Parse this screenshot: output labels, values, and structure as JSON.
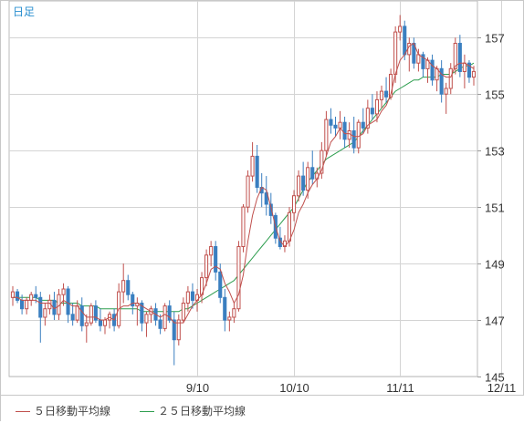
{
  "period_label": "日足",
  "legend": [
    {
      "label": "５日移動平均線",
      "color": "#c0504d"
    },
    {
      "label": "２５日移動平均線",
      "color": "#2e9e4f"
    }
  ],
  "colors": {
    "up": "#c0504d",
    "down": "#3a7fc0",
    "ma5": "#c0504d",
    "ma25": "#2e9e4f",
    "grid": "#d4d4d4"
  },
  "chart_data": {
    "type": "candlestick",
    "title": "",
    "xlabel": "",
    "ylabel": "",
    "ylim": [
      145,
      158.3
    ],
    "y_ticks": [
      145,
      147,
      149,
      151,
      153,
      155,
      157
    ],
    "x_ticks": [
      {
        "label": "9/10",
        "index": 40
      },
      {
        "label": "10/10",
        "index": 61
      },
      {
        "label": "11/11",
        "index": 84
      },
      {
        "label": "12/11",
        "index": 106
      }
    ],
    "grid": true,
    "legend_position": "bottom",
    "ohlc": [
      [
        147.8,
        148.2,
        147.5,
        148.0
      ],
      [
        148.0,
        148.1,
        147.6,
        147.7
      ],
      [
        147.7,
        147.9,
        147.2,
        147.4
      ],
      [
        147.4,
        147.8,
        147.2,
        147.7
      ],
      [
        147.7,
        148.0,
        147.5,
        147.9
      ],
      [
        147.9,
        148.2,
        147.6,
        147.8
      ],
      [
        147.8,
        148.0,
        146.2,
        147.1
      ],
      [
        147.1,
        147.6,
        146.8,
        147.4
      ],
      [
        147.4,
        147.9,
        147.2,
        147.7
      ],
      [
        147.7,
        148.0,
        147.0,
        147.2
      ],
      [
        147.2,
        148.1,
        147.0,
        147.9
      ],
      [
        147.9,
        148.3,
        147.5,
        148.1
      ],
      [
        148.1,
        148.2,
        146.9,
        147.2
      ],
      [
        147.2,
        147.6,
        146.8,
        147.0
      ],
      [
        147.0,
        147.7,
        146.9,
        147.5
      ],
      [
        147.5,
        147.8,
        146.6,
        146.8
      ],
      [
        146.8,
        147.2,
        146.2,
        146.9
      ],
      [
        146.9,
        147.6,
        146.8,
        147.5
      ],
      [
        147.5,
        147.7,
        146.9,
        147.0
      ],
      [
        147.0,
        147.4,
        146.6,
        146.8
      ],
      [
        146.8,
        147.1,
        146.5,
        147.0
      ],
      [
        147.0,
        147.3,
        146.7,
        147.2
      ],
      [
        147.2,
        147.4,
        146.6,
        146.8
      ],
      [
        146.8,
        148.3,
        146.7,
        148.0
      ],
      [
        148.0,
        149.0,
        147.6,
        148.4
      ],
      [
        148.4,
        148.6,
        147.7,
        147.9
      ],
      [
        147.9,
        148.0,
        147.2,
        147.5
      ],
      [
        147.5,
        147.8,
        146.8,
        147.6
      ],
      [
        147.6,
        147.7,
        146.6,
        146.9
      ],
      [
        146.9,
        147.3,
        146.4,
        147.2
      ],
      [
        147.2,
        147.5,
        146.9,
        147.4
      ],
      [
        147.4,
        147.6,
        146.8,
        147.0
      ],
      [
        147.0,
        147.2,
        146.5,
        146.7
      ],
      [
        146.7,
        147.6,
        146.6,
        147.5
      ],
      [
        147.5,
        147.7,
        146.9,
        147.0
      ],
      [
        147.0,
        147.3,
        145.4,
        146.3
      ],
      [
        146.3,
        147.2,
        146.1,
        147.0
      ],
      [
        147.0,
        147.8,
        146.9,
        147.6
      ],
      [
        147.6,
        148.2,
        147.3,
        148.0
      ],
      [
        148.0,
        148.3,
        147.4,
        147.7
      ],
      [
        147.7,
        148.1,
        147.3,
        147.9
      ],
      [
        147.9,
        148.7,
        147.6,
        148.5
      ],
      [
        148.5,
        149.5,
        148.2,
        149.3
      ],
      [
        149.3,
        149.8,
        148.9,
        149.6
      ],
      [
        149.6,
        149.8,
        148.4,
        148.7
      ],
      [
        148.7,
        149.0,
        147.6,
        147.8
      ],
      [
        147.8,
        148.1,
        146.6,
        147.0
      ],
      [
        147.0,
        147.3,
        146.6,
        147.1
      ],
      [
        147.1,
        147.6,
        146.9,
        147.4
      ],
      [
        147.4,
        149.8,
        147.3,
        149.6
      ],
      [
        149.6,
        151.1,
        149.4,
        151.0
      ],
      [
        151.0,
        152.3,
        150.8,
        152.1
      ],
      [
        152.1,
        153.3,
        151.9,
        152.8
      ],
      [
        152.8,
        153.2,
        151.5,
        151.7
      ],
      [
        151.7,
        152.2,
        151.0,
        151.5
      ],
      [
        151.5,
        152.1,
        150.7,
        151.1
      ],
      [
        151.1,
        151.5,
        150.4,
        150.7
      ],
      [
        150.7,
        150.8,
        149.7,
        149.9
      ],
      [
        149.9,
        150.3,
        149.5,
        149.6
      ],
      [
        149.6,
        150.0,
        149.4,
        149.8
      ],
      [
        149.8,
        151.0,
        149.6,
        150.8
      ],
      [
        150.8,
        151.6,
        150.5,
        151.4
      ],
      [
        151.4,
        152.3,
        151.2,
        152.1
      ],
      [
        152.1,
        152.6,
        151.4,
        151.6
      ],
      [
        151.6,
        152.6,
        151.3,
        152.4
      ],
      [
        152.4,
        153.0,
        151.8,
        152.0
      ],
      [
        152.0,
        152.4,
        151.7,
        152.2
      ],
      [
        152.2,
        153.3,
        152.0,
        153.0
      ],
      [
        153.0,
        154.4,
        152.8,
        154.1
      ],
      [
        154.1,
        154.5,
        153.6,
        153.9
      ],
      [
        153.9,
        154.2,
        153.5,
        153.8
      ],
      [
        153.8,
        154.4,
        153.4,
        154.0
      ],
      [
        154.0,
        154.2,
        153.1,
        153.4
      ],
      [
        153.4,
        154.0,
        153.1,
        153.7
      ],
      [
        153.7,
        154.2,
        152.9,
        153.1
      ],
      [
        153.1,
        154.1,
        152.9,
        154.0
      ],
      [
        154.0,
        154.5,
        153.6,
        153.8
      ],
      [
        153.8,
        154.8,
        153.6,
        154.5
      ],
      [
        154.5,
        155.0,
        154.1,
        154.3
      ],
      [
        154.3,
        155.1,
        154.0,
        154.8
      ],
      [
        154.8,
        155.3,
        154.5,
        155.1
      ],
      [
        155.1,
        155.6,
        154.7,
        154.9
      ],
      [
        154.9,
        155.9,
        154.8,
        155.7
      ],
      [
        155.7,
        157.4,
        155.4,
        157.2
      ],
      [
        157.2,
        157.8,
        156.9,
        157.4
      ],
      [
        157.4,
        157.6,
        156.2,
        156.4
      ],
      [
        156.4,
        157.0,
        155.8,
        156.8
      ],
      [
        156.8,
        157.0,
        155.9,
        156.1
      ],
      [
        156.1,
        156.6,
        155.8,
        156.4
      ],
      [
        156.4,
        156.5,
        155.6,
        155.9
      ],
      [
        155.9,
        156.3,
        155.4,
        156.2
      ],
      [
        156.2,
        156.4,
        155.3,
        155.5
      ],
      [
        155.5,
        156.0,
        155.1,
        155.9
      ],
      [
        155.9,
        156.2,
        154.7,
        155.0
      ],
      [
        155.0,
        155.4,
        154.3,
        155.2
      ],
      [
        155.2,
        156.1,
        155.0,
        155.9
      ],
      [
        155.9,
        157.0,
        155.7,
        156.8
      ],
      [
        156.8,
        157.1,
        155.6,
        155.8
      ],
      [
        155.8,
        156.4,
        155.2,
        156.1
      ],
      [
        156.1,
        156.2,
        155.4,
        155.6
      ],
      [
        155.6,
        156.0,
        155.3,
        155.8
      ]
    ],
    "ma5": [
      147.8,
      147.8,
      147.7,
      147.7,
      147.7,
      147.7,
      147.6,
      147.6,
      147.6,
      147.4,
      147.5,
      147.7,
      147.6,
      147.5,
      147.5,
      147.3,
      147.1,
      147.1,
      147.1,
      147.0,
      147.0,
      147.1,
      147.0,
      147.4,
      147.5,
      147.5,
      147.6,
      147.6,
      147.5,
      147.4,
      147.3,
      147.2,
      147.1,
      147.2,
      147.1,
      146.9,
      146.9,
      146.9,
      147.2,
      147.5,
      147.7,
      147.9,
      148.3,
      148.8,
      148.9,
      148.8,
      148.3,
      148.0,
      147.6,
      147.9,
      148.6,
      149.8,
      150.7,
      151.3,
      151.7,
      151.6,
      151.0,
      150.3,
      149.8,
      149.6,
      149.8,
      150.2,
      150.8,
      151.1,
      151.5,
      151.8,
      152.0,
      152.3,
      152.8,
      153.3,
      153.5,
      153.8,
      153.6,
      153.6,
      153.5,
      153.5,
      153.6,
      153.9,
      154.0,
      154.1,
      154.4,
      154.6,
      155.0,
      155.7,
      156.2,
      156.4,
      156.7,
      156.8,
      156.4,
      156.3,
      156.2,
      156.0,
      155.9,
      155.7,
      155.6,
      155.6,
      156.0,
      156.1,
      156.1,
      156.0,
      155.9
    ],
    "ma25": [
      147.8,
      147.8,
      147.8,
      147.8,
      147.8,
      147.8,
      147.7,
      147.7,
      147.7,
      147.7,
      147.6,
      147.6,
      147.6,
      147.6,
      147.6,
      147.5,
      147.5,
      147.5,
      147.5,
      147.4,
      147.4,
      147.4,
      147.4,
      147.4,
      147.4,
      147.4,
      147.4,
      147.4,
      147.3,
      147.3,
      147.3,
      147.3,
      147.3,
      147.3,
      147.3,
      147.3,
      147.3,
      147.4,
      147.4,
      147.5,
      147.6,
      147.7,
      147.8,
      147.9,
      148.0,
      148.1,
      148.2,
      148.3,
      148.4,
      148.6,
      148.8,
      149.0,
      149.2,
      149.4,
      149.6,
      149.8,
      150.0,
      150.2,
      150.4,
      150.6,
      150.8,
      151.0,
      151.3,
      151.6,
      151.9,
      152.1,
      152.3,
      152.5,
      152.7,
      152.8,
      152.9,
      153.0,
      153.1,
      153.2,
      153.3,
      153.5,
      153.7,
      153.9,
      154.1,
      154.3,
      154.5,
      154.7,
      154.9,
      155.1,
      155.2,
      155.3,
      155.4,
      155.5,
      155.5,
      155.6,
      155.6,
      155.6,
      155.6,
      155.7,
      155.7,
      155.7,
      155.8,
      155.9,
      156.0,
      156.0,
      156.1
    ]
  }
}
